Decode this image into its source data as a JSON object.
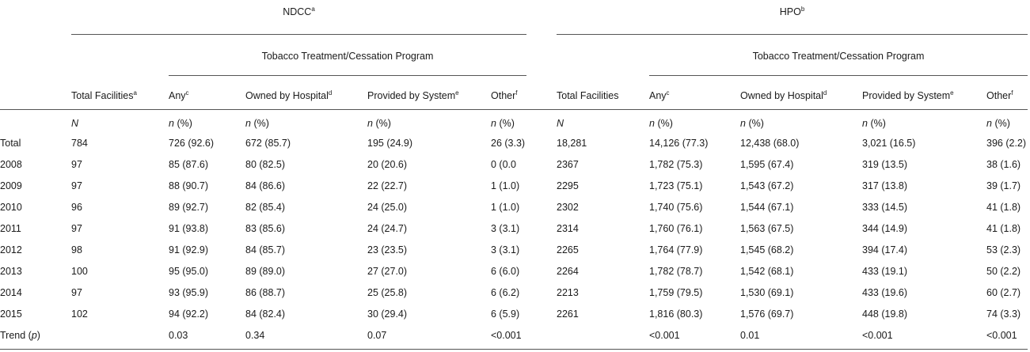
{
  "groups": [
    {
      "label": "NDCC",
      "sup": "a",
      "program": "Tobacco Treatment/Cessation Program",
      "columns": [
        {
          "label": "Total Facilities",
          "sup": "a"
        },
        {
          "label": "Any",
          "sup": "c"
        },
        {
          "label": "Owned by Hospital",
          "sup": "d"
        },
        {
          "label": "Provided by System",
          "sup": "e"
        },
        {
          "label": "Other",
          "sup": "f"
        }
      ]
    },
    {
      "label": "HPO",
      "sup": "b",
      "program": "Tobacco Treatment/Cessation Program",
      "columns": [
        {
          "label": "Total Facilities",
          "sup": null
        },
        {
          "label": "Any",
          "sup": "c"
        },
        {
          "label": "Owned by Hospital",
          "sup": "d"
        },
        {
          "label": "Provided by System",
          "sup": "e"
        },
        {
          "label": "Other",
          "sup": "f"
        }
      ]
    }
  ],
  "units": [
    [
      "N"
    ],
    [
      "n",
      "(%)"
    ],
    [
      "n",
      "(%)"
    ],
    [
      "n",
      "(%)"
    ],
    [
      "n",
      "(%)"
    ],
    [
      "N"
    ],
    [
      "n",
      "(%)"
    ],
    [
      "n",
      "(%)"
    ],
    [
      "n",
      "(%)"
    ],
    [
      "n",
      "(%)"
    ]
  ],
  "rows": [
    {
      "label": [
        "Total"
      ],
      "cells": [
        "784",
        "726 (92.6)",
        "672 (85.7)",
        "195 (24.9)",
        "26 (3.3)",
        "18,281",
        "14,126 (77.3)",
        "12,438 (68.0)",
        "3,021 (16.5)",
        "396 (2.2)"
      ]
    },
    {
      "label": [
        "2008"
      ],
      "cells": [
        "97",
        "85 (87.6)",
        "80 (82.5)",
        "20 (20.6)",
        "0 (0.0",
        "2367",
        "1,782 (75.3)",
        "1,595 (67.4)",
        "319 (13.5)",
        "38 (1.6)"
      ]
    },
    {
      "label": [
        "2009"
      ],
      "cells": [
        "97",
        "88 (90.7)",
        "84 (86.6)",
        "22 (22.7)",
        "1 (1.0)",
        "2295",
        "1,723 (75.1)",
        "1,543 (67.2)",
        "317 (13.8)",
        "39 (1.7)"
      ]
    },
    {
      "label": [
        "2010"
      ],
      "cells": [
        "96",
        "89 (92.7)",
        "82 (85.4)",
        "24 (25.0)",
        "1 (1.0)",
        "2302",
        "1,740 (75.6)",
        "1,544 (67.1)",
        "333 (14.5)",
        "41 (1.8)"
      ]
    },
    {
      "label": [
        "2011"
      ],
      "cells": [
        "97",
        "91 (93.8)",
        "83 (85.6)",
        "24 (24.7)",
        "3 (3.1)",
        "2314",
        "1,760 (76.1)",
        "1,563 (67.5)",
        "344 (14.9)",
        "41 (1.8)"
      ]
    },
    {
      "label": [
        "2012"
      ],
      "cells": [
        "98",
        "91 (92.9)",
        "84 (85.7)",
        "23 (23.5)",
        "3 (3.1)",
        "2265",
        "1,764 (77.9)",
        "1,545 (68.2)",
        "394 (17.4)",
        "53 (2.3)"
      ]
    },
    {
      "label": [
        "2013"
      ],
      "cells": [
        "100",
        "95 (95.0)",
        "89 (89.0)",
        "27 (27.0)",
        "6 (6.0)",
        "2264",
        "1,782 (78.7)",
        "1,542 (68.1)",
        "433 (19.1)",
        "50 (2.2)"
      ]
    },
    {
      "label": [
        "2014"
      ],
      "cells": [
        "97",
        "93 (95.9)",
        "86 (88.7)",
        "25 (25.8)",
        "6 (6.2)",
        "2213",
        "1,759 (79.5)",
        "1,530 (69.1)",
        "433 (19.6)",
        "60 (2.7)"
      ]
    },
    {
      "label": [
        "2015"
      ],
      "cells": [
        "102",
        "94 (92.2)",
        "84 (82.4)",
        "30 (29.4)",
        "6 (5.9)",
        "2261",
        "1,816 (80.3)",
        "1,576 (69.7)",
        "448 (19.8)",
        "74 (3.3)"
      ]
    },
    {
      "label": [
        "Trend (",
        "p",
        ")"
      ],
      "cells": [
        null,
        "0.03",
        "0.34",
        "0.07",
        "<0.001",
        null,
        "<0.001",
        "0.01",
        "<0.001",
        "<0.001"
      ]
    }
  ]
}
